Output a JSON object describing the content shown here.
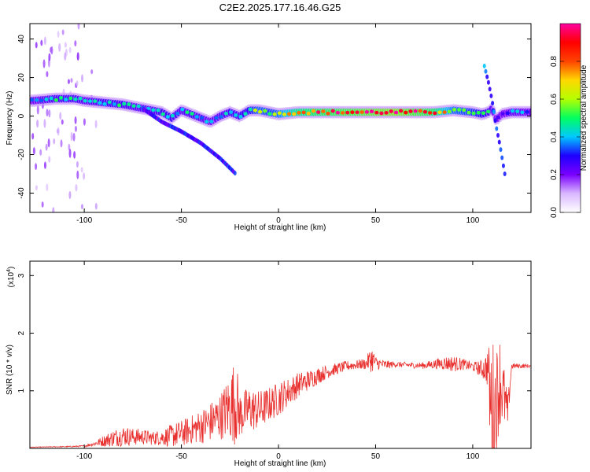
{
  "title": "C2E2.2025.177.16.46.G25",
  "chart_data": [
    {
      "type": "heatmap",
      "xlabel": "Height of straight line (km)",
      "ylabel": "Frequency (Hz)",
      "xlim": [
        -128,
        130
      ],
      "ylim": [
        -50,
        48
      ],
      "xticks": [
        -100,
        -50,
        0,
        50,
        100
      ],
      "xtick_labels": [
        "-100",
        "-50",
        "0",
        "50",
        "100"
      ],
      "yticks": [
        -40,
        -20,
        0,
        20,
        40
      ],
      "ytick_labels": [
        "-40",
        "-20",
        "0",
        "20",
        "40"
      ],
      "colorbar": {
        "label": "Normalized spectral amplitude",
        "range": [
          0,
          1
        ],
        "ticks": [
          0.0,
          0.2,
          0.4,
          0.6,
          0.8
        ],
        "tick_labels": [
          "0.0",
          "0.2",
          "0.4",
          "0.6",
          "0.8"
        ],
        "colors": [
          "#ffffff",
          "#d9b8ff",
          "#7a00ff",
          "#1e00ff",
          "#00c8ff",
          "#00ff60",
          "#b4ff00",
          "#ffd800",
          "#ff4400",
          "#ff0000",
          "#ff00a0"
        ]
      },
      "ridge": {
        "x": [
          -126,
          -115,
          -105,
          -100,
          -90,
          -80,
          -70,
          -60,
          -55,
          -50,
          -45,
          -40,
          -35,
          -30,
          -25,
          -20,
          -15,
          -10,
          -5,
          0,
          10,
          20,
          40,
          60,
          80,
          90,
          100,
          105,
          108,
          110,
          112,
          115,
          120,
          130
        ],
        "y": [
          8,
          9,
          9,
          8,
          7,
          6,
          4,
          2,
          -1,
          3,
          1,
          -1,
          -3,
          0,
          2,
          0,
          3,
          3,
          2,
          1,
          2,
          2,
          2,
          2,
          2,
          3,
          2,
          1,
          2,
          4,
          -2,
          1,
          2,
          2
        ],
        "amplitude": [
          0.35,
          0.45,
          0.45,
          0.4,
          0.45,
          0.45,
          0.4,
          0.45,
          0.45,
          0.4,
          0.45,
          0.4,
          0.35,
          0.4,
          0.45,
          0.45,
          0.5,
          0.6,
          0.55,
          0.6,
          0.8,
          0.85,
          0.9,
          0.95,
          0.85,
          0.6,
          0.55,
          0.5,
          0.45,
          0.35,
          0.3,
          0.25,
          0.4,
          0.35
        ]
      },
      "branches": [
        {
          "x": [
            -70,
            -60,
            -50,
            -40,
            -30,
            -22
          ],
          "y": [
            4,
            -3,
            -8,
            -14,
            -22,
            -30
          ],
          "amplitude": 0.2
        },
        {
          "x": [
            106,
            108,
            110,
            112,
            114,
            117
          ],
          "y": [
            26,
            18,
            8,
            -5,
            -15,
            -33
          ],
          "amplitude": 0.25
        }
      ]
    },
    {
      "type": "line",
      "xlabel": "Height of straight line (km)",
      "ylabel": "SNR (10 * v/v)",
      "yscale_label": "(x10",
      "yscale_exponent": "4",
      "xlim": [
        -128,
        130
      ],
      "ylim": [
        0,
        32500
      ],
      "xticks": [
        -100,
        -50,
        0,
        50,
        100
      ],
      "xtick_labels": [
        "-100",
        "-50",
        "0",
        "50",
        "100"
      ],
      "yticks": [
        10000,
        20000,
        30000
      ],
      "ytick_labels": [
        "1",
        "2",
        "3"
      ],
      "series": [
        {
          "color": "#e8302e",
          "x": [
            -128,
            -110,
            -100,
            -95,
            -90,
            -85,
            -80,
            -75,
            -70,
            -65,
            -60,
            -55,
            -50,
            -45,
            -40,
            -35,
            -30,
            -25,
            -22,
            -20,
            -15,
            -10,
            -5,
            0,
            5,
            10,
            15,
            20,
            25,
            30,
            35,
            40,
            45,
            48,
            50,
            55,
            60,
            65,
            70,
            75,
            80,
            85,
            90,
            95,
            100,
            105,
            108,
            110,
            112,
            114,
            116,
            118,
            120,
            125,
            130
          ],
          "y": [
            200,
            300,
            400,
            800,
            1300,
            1800,
            2200,
            2000,
            2000,
            1800,
            1900,
            2200,
            2600,
            3200,
            3800,
            4600,
            5600,
            7200,
            8500,
            5800,
            6800,
            6600,
            7600,
            8600,
            9800,
            11000,
            11800,
            12600,
            13300,
            13800,
            14300,
            14500,
            14700,
            15600,
            14800,
            14500,
            14600,
            14500,
            14400,
            14400,
            14600,
            14800,
            14700,
            14600,
            14200,
            13800,
            14000,
            3000,
            8500,
            12000,
            9000,
            6000,
            14300,
            14300,
            14300
          ],
          "noise": [
            50,
            80,
            150,
            400,
            1000,
            1500,
            1800,
            1500,
            1400,
            1200,
            1400,
            2000,
            2300,
            2500,
            3000,
            3500,
            4000,
            6000,
            8000,
            4000,
            4000,
            3500,
            3000,
            3000,
            2500,
            2200,
            1800,
            1500,
            1200,
            1000,
            900,
            800,
            1000,
            2400,
            1200,
            800,
            500,
            500,
            500,
            600,
            800,
            1200,
            1400,
            1000,
            800,
            1600,
            3500,
            17000,
            9000,
            8000,
            6000,
            3000,
            500,
            400,
            300
          ]
        }
      ]
    }
  ]
}
